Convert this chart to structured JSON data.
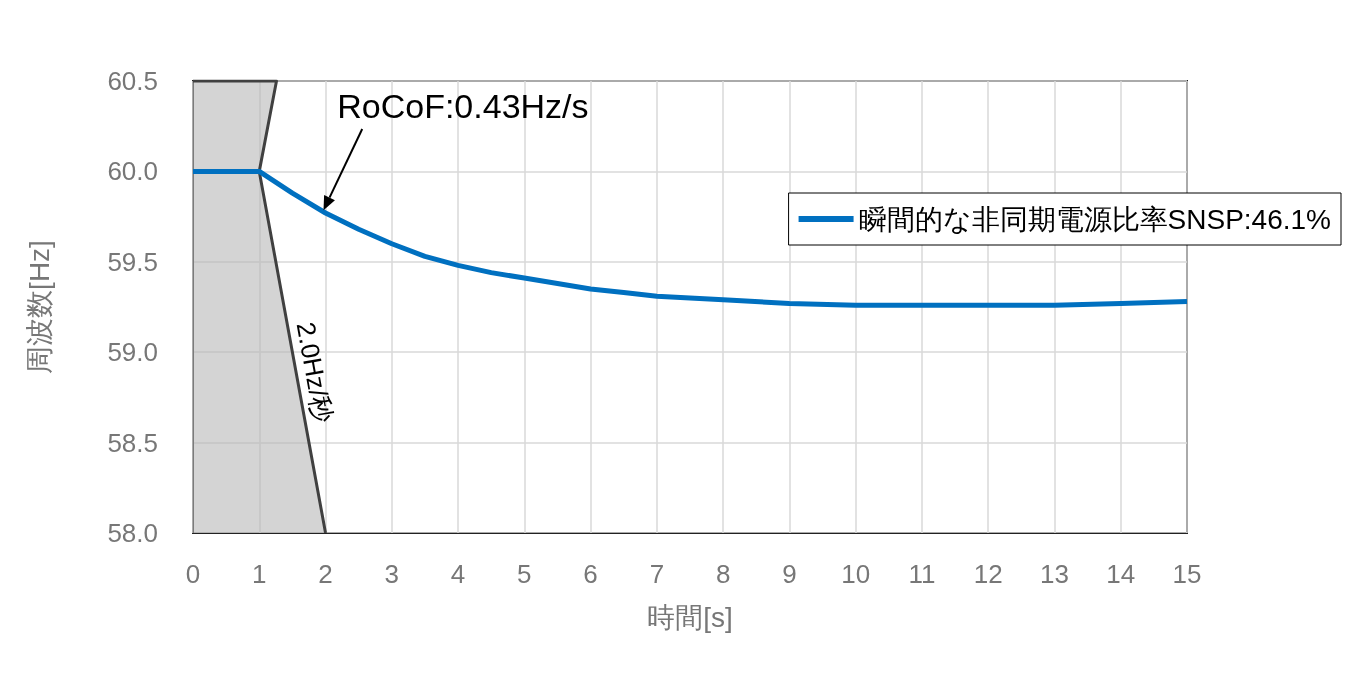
{
  "chart_data": {
    "type": "line",
    "xlabel": "時間[s]",
    "ylabel": "周波数[Hz]",
    "xlim": [
      0,
      15
    ],
    "xticks": [
      0,
      1,
      2,
      3,
      4,
      5,
      6,
      7,
      8,
      9,
      10,
      11,
      12,
      13,
      14,
      15
    ],
    "ylim": [
      58,
      60.5
    ],
    "yticks": [
      {
        "value": 58,
        "label": "58.0"
      },
      {
        "value": 58.5,
        "label": "58.5"
      },
      {
        "value": 59,
        "label": "59.0"
      },
      {
        "value": 59.5,
        "label": "59.5"
      },
      {
        "value": 60,
        "label": "60.0"
      },
      {
        "value": 60.5,
        "label": "60.5"
      }
    ],
    "grid": true,
    "legend": "top right",
    "series": [
      {
        "type": "area",
        "color": "#404040",
        "x": [
          0,
          1.26,
          1,
          2
        ],
        "values": [
          60.5,
          60.5,
          60,
          58
        ]
      },
      {
        "name": "瞬間的な非同期電源比率SNSP:46.1%",
        "color": "#0070c0",
        "x": [
          0,
          0.5,
          1,
          1.5,
          2,
          2.5,
          3,
          3.5,
          4,
          4.5,
          5,
          5.5,
          6,
          6.5,
          7,
          7.5,
          8,
          9,
          10,
          11,
          12,
          13,
          14,
          15
        ],
        "values": [
          60,
          60,
          60,
          59.88,
          59.77,
          59.68,
          59.6,
          59.53,
          59.48,
          59.44,
          59.41,
          59.38,
          59.35,
          59.33,
          59.31,
          59.3,
          59.29,
          59.27,
          59.26,
          59.26,
          59.26,
          59.26,
          59.27,
          59.28
        ]
      }
    ],
    "annotations": [
      {
        "text": "RoCoF:0.43Hz/s",
        "x": 1.95,
        "y": 59.77
      },
      "2.0Hz/秒"
    ]
  }
}
